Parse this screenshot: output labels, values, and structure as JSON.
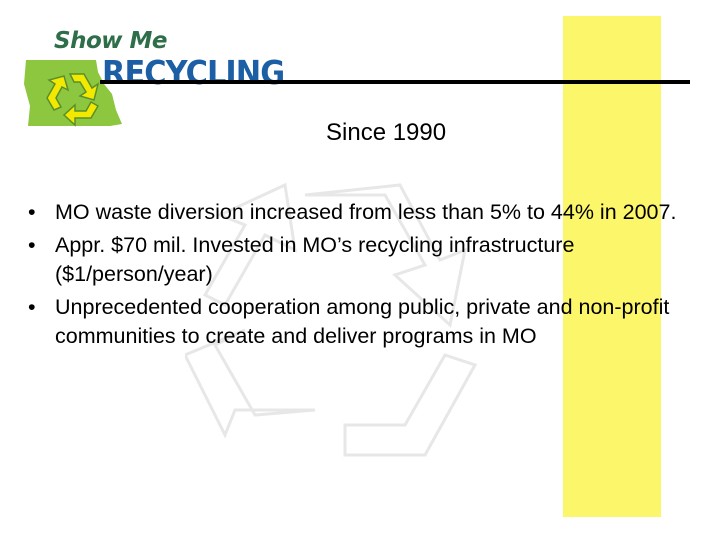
{
  "logo": {
    "line1": "Show Me",
    "line2": "RECYCLING",
    "colors": {
      "state": "#8dc63f",
      "symbol": "#f2e800",
      "line1": "#2e6e48",
      "line2": "#1d5fa4"
    }
  },
  "heading": "Since 1990",
  "bullets": [
    {
      "marker": "•",
      "text": "MO waste diversion increased from less than 5% to 44% in 2007."
    },
    {
      "marker": "•",
      "text": "Appr. $70 mil. Invested in MO’s recycling infrastructure ($1/person/year)"
    },
    {
      "marker": "•",
      "text": "Unprecedented cooperation among public, private and non-profit communities to create and deliver programs in MO"
    }
  ],
  "colors": {
    "accent_band": "#fbf66a",
    "rule": "#000000",
    "text": "#000000"
  },
  "icons": {
    "logo_symbol": "recycle-icon",
    "watermark": "recycle-icon"
  }
}
